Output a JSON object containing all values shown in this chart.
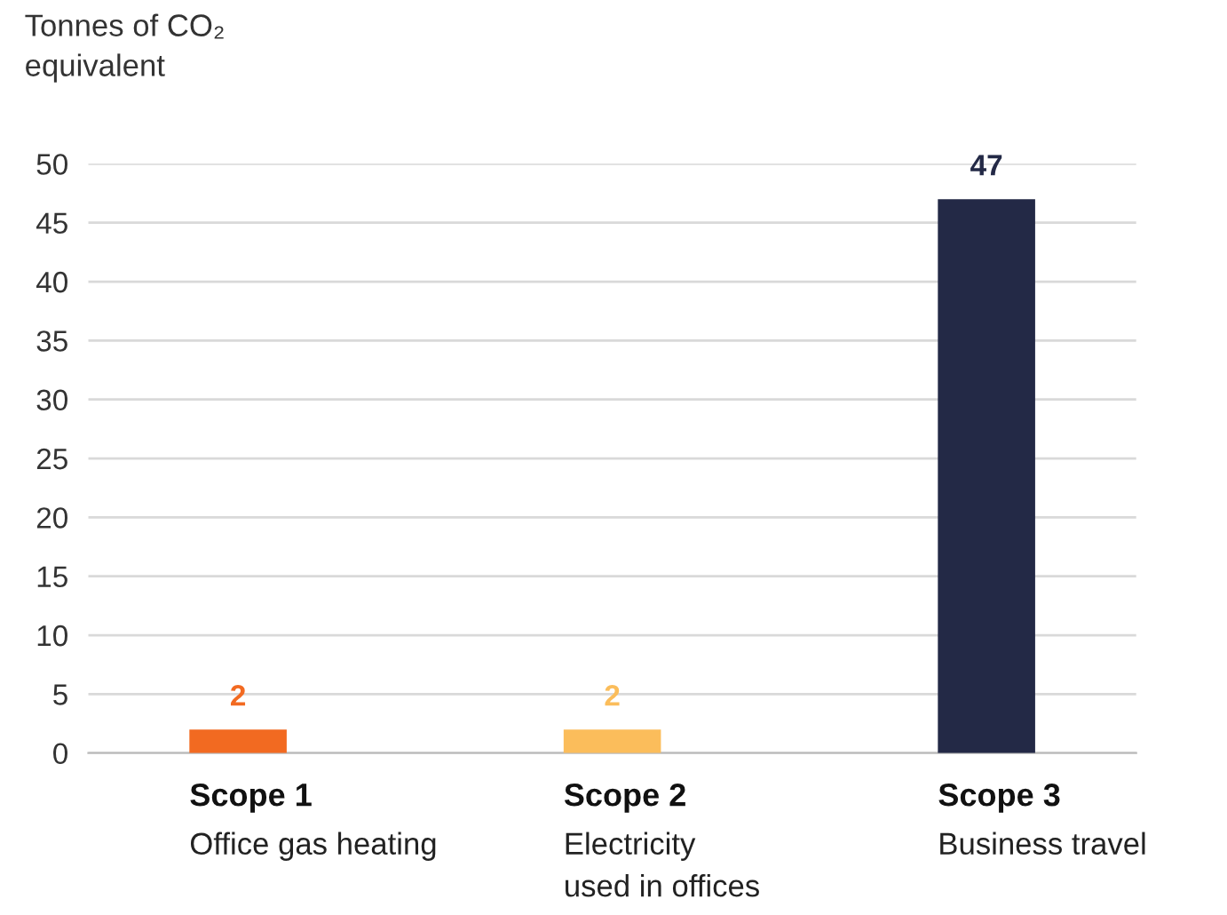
{
  "chart_data": {
    "type": "bar",
    "ylabel": "Tonnes of CO₂\nequivalent",
    "categories": [
      "Scope 1\nOffice gas heating",
      "Scope 2\nElectricity\nused in offices",
      "Scope 3\nBusiness travel"
    ],
    "values": [
      2,
      2,
      47
    ],
    "colors": [
      "#f26a21",
      "#fbbd5b",
      "#232946"
    ],
    "ylim": [
      0,
      50
    ],
    "yticks": [
      0,
      5,
      10,
      15,
      20,
      25,
      30,
      35,
      40,
      45,
      50
    ],
    "grid": "y",
    "data_labels": true
  }
}
